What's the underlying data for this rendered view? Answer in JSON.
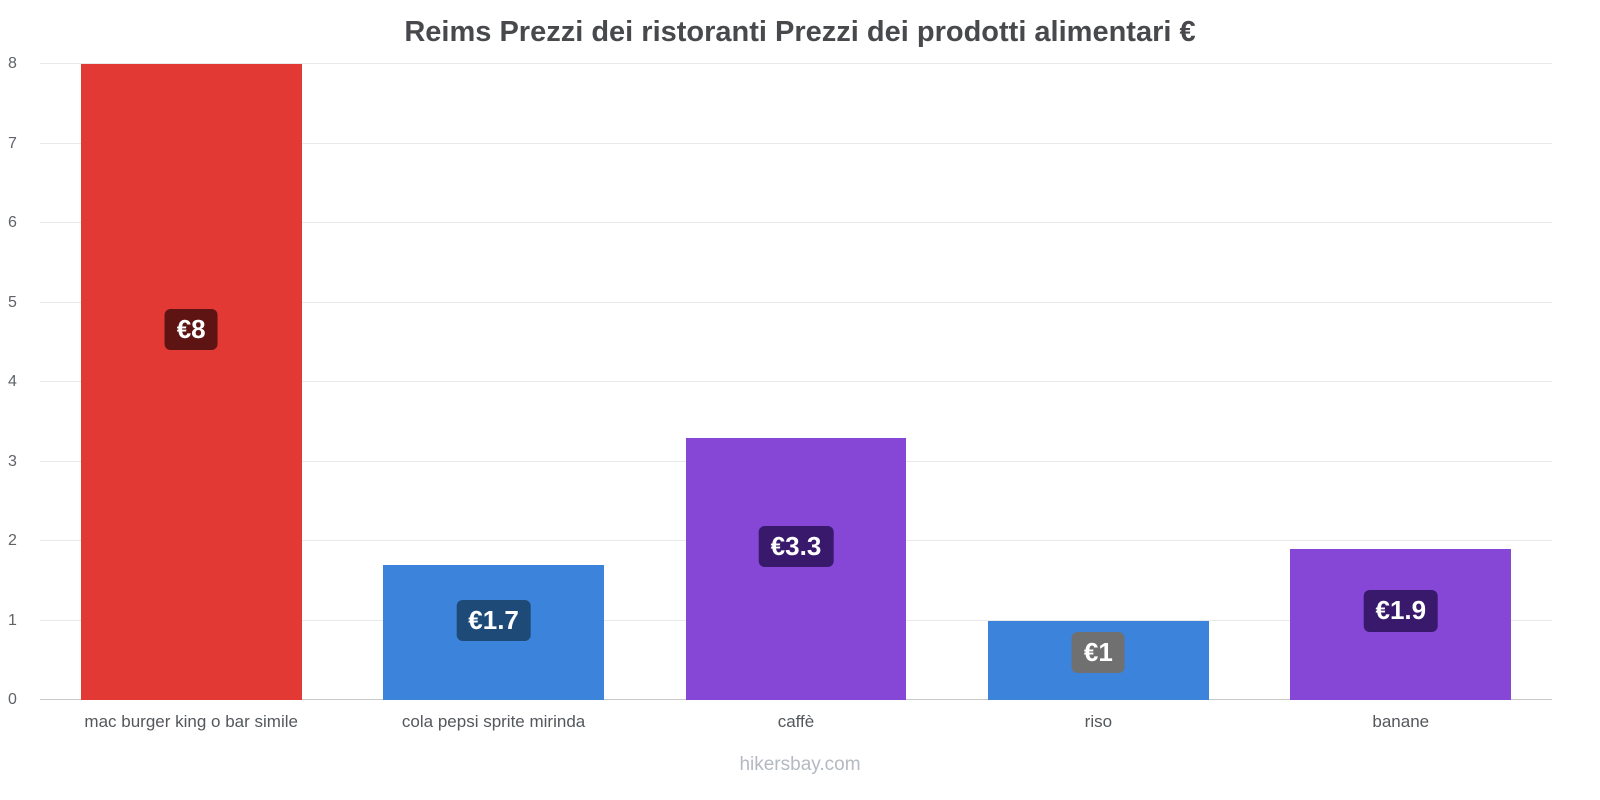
{
  "title": "Reims Prezzi dei ristoranti Prezzi dei prodotti alimentari €",
  "footer": "hikersbay.com",
  "y_axis": {
    "ticks": [
      0,
      1,
      2,
      3,
      4,
      5,
      6,
      7,
      8
    ]
  },
  "chart_data": {
    "type": "bar",
    "title": "Reims Prezzi dei ristoranti Prezzi dei prodotti alimentari €",
    "categories": [
      "mac burger king o bar simile",
      "cola pepsi sprite mirinda",
      "caffè",
      "riso",
      "banane"
    ],
    "values": [
      8,
      1.7,
      3.3,
      1,
      1.9
    ],
    "labels": [
      "€8",
      "€1.7",
      "€3.3",
      "€1",
      "€1.9"
    ],
    "bar_colors": [
      "#e23935",
      "#3b83db",
      "#8647d6",
      "#3b83db",
      "#8647d6"
    ],
    "label_bg_colors": [
      "#5d1413",
      "#1e4a78",
      "#38196b",
      "#707070",
      "#38196b"
    ],
    "xlabel": "",
    "ylabel": "",
    "ylim": [
      0,
      8
    ],
    "grid": true,
    "legend": false,
    "watermark": "hikersbay.com"
  }
}
